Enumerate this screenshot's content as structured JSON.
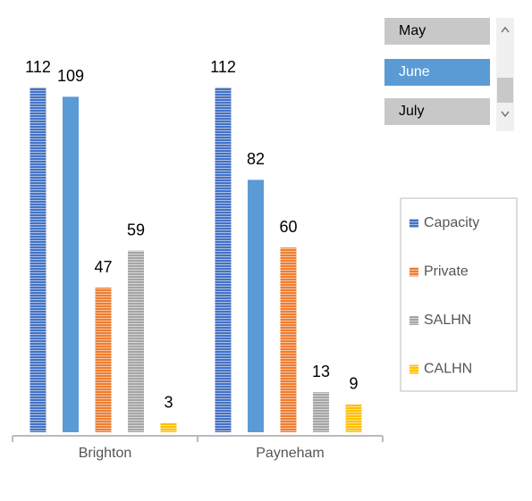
{
  "chart_data": {
    "type": "bar",
    "categories": [
      "Brighton",
      "Payneham"
    ],
    "series": [
      {
        "name": "Capacity",
        "color": "#4472c4",
        "striped": true,
        "values": [
          112,
          112
        ]
      },
      {
        "name": null,
        "color": "#5b9bd5",
        "striped": false,
        "values": [
          109,
          82
        ]
      },
      {
        "name": "Private",
        "color": "#ed7d31",
        "striped": true,
        "values": [
          47,
          60
        ]
      },
      {
        "name": "SALHN",
        "color": "#a5a5a5",
        "striped": true,
        "values": [
          59,
          13
        ]
      },
      {
        "name": "CALHN",
        "color": "#ffc000",
        "striped": true,
        "values": [
          3,
          9
        ]
      }
    ],
    "legend": "right"
  },
  "slicer": {
    "items": [
      "May",
      "June",
      "July"
    ],
    "selected": 1
  }
}
